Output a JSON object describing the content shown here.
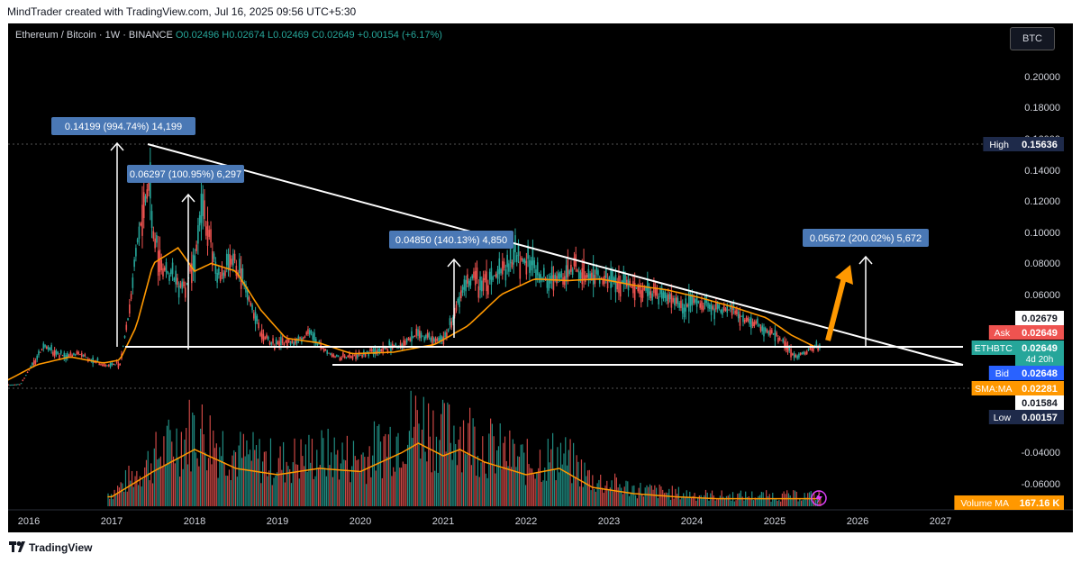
{
  "header": {
    "attribution": "MindTrader created with TradingView.com, Jul 16, 2025 09:56 UTC+5:30"
  },
  "legend": {
    "symbol": "Ethereum / Bitcoin · 1W · BINANCE",
    "ohlc": "O0.02496 H0.02674 L0.02469 C0.02649 +0.00154 (+6.17%)"
  },
  "currency_button": "BTC",
  "footer": {
    "brand": "TradingView"
  },
  "colors": {
    "up": "#26a69a",
    "down": "#ef5350",
    "ma": "#ff9800",
    "trendline": "#ffffff",
    "measure_box": "#4a78b5",
    "arrow_orange": "#ff9800"
  },
  "chart_data": {
    "type": "line",
    "x_labels": [
      "2016",
      "2017",
      "2018",
      "2019",
      "2020",
      "2021",
      "2022",
      "2023",
      "2024",
      "2025",
      "2026",
      "2027"
    ],
    "y_ticks": [
      "0.20000",
      "0.18000",
      "0.16000",
      "0.14000",
      "0.12000",
      "0.10000",
      "0.08000",
      "0.06000",
      "-0.04000",
      "-0.06000"
    ],
    "price_series": {
      "x": [
        2015.6,
        2015.9,
        2016.1,
        2016.2,
        2016.35,
        2016.45,
        2016.6,
        2016.8,
        2016.95,
        2017.1,
        2017.2,
        2017.3,
        2017.45,
        2017.5,
        2017.6,
        2017.75,
        2017.9,
        2018.0,
        2018.1,
        2018.2,
        2018.3,
        2018.45,
        2018.6,
        2018.8,
        2018.95,
        2019.2,
        2019.4,
        2019.55,
        2019.7,
        2019.9,
        2020.1,
        2020.3,
        2020.5,
        2020.7,
        2020.9,
        2021.05,
        2021.2,
        2021.35,
        2021.5,
        2021.7,
        2021.9,
        2022.1,
        2022.25,
        2022.45,
        2022.55,
        2022.7,
        2022.9,
        2023.1,
        2023.3,
        2023.5,
        2023.7,
        2023.9,
        2024.1,
        2024.3,
        2024.5,
        2024.7,
        2024.9,
        2025.1,
        2025.25,
        2025.35,
        2025.5
      ],
      "y": [
        0.0015,
        0.0025,
        0.02,
        0.028,
        0.022,
        0.02,
        0.022,
        0.017,
        0.014,
        0.016,
        0.045,
        0.09,
        0.135,
        0.1,
        0.08,
        0.07,
        0.065,
        0.085,
        0.115,
        0.09,
        0.07,
        0.085,
        0.065,
        0.035,
        0.028,
        0.03,
        0.035,
        0.025,
        0.02,
        0.02,
        0.023,
        0.025,
        0.028,
        0.035,
        0.03,
        0.034,
        0.058,
        0.07,
        0.068,
        0.075,
        0.085,
        0.077,
        0.068,
        0.07,
        0.078,
        0.072,
        0.071,
        0.068,
        0.065,
        0.062,
        0.058,
        0.053,
        0.055,
        0.05,
        0.05,
        0.042,
        0.038,
        0.03,
        0.02,
        0.022,
        0.02649
      ]
    },
    "ma_series": {
      "x": [
        2015.6,
        2016.1,
        2016.5,
        2016.9,
        2017.1,
        2017.3,
        2017.5,
        2017.8,
        2018.0,
        2018.2,
        2018.5,
        2018.8,
        2019.1,
        2019.5,
        2019.9,
        2020.4,
        2020.9,
        2021.3,
        2021.7,
        2022.1,
        2022.5,
        2022.9,
        2023.3,
        2023.7,
        2024.1,
        2024.5,
        2024.9,
        2025.2,
        2025.5
      ],
      "y": [
        0.001,
        0.015,
        0.02,
        0.016,
        0.018,
        0.04,
        0.08,
        0.09,
        0.075,
        0.08,
        0.075,
        0.05,
        0.032,
        0.029,
        0.022,
        0.023,
        0.028,
        0.04,
        0.06,
        0.07,
        0.069,
        0.07,
        0.066,
        0.063,
        0.058,
        0.052,
        0.045,
        0.034,
        0.026
      ]
    },
    "volume_series": {
      "x": [
        2017.0,
        2017.5,
        2018.0,
        2018.5,
        2019.0,
        2019.5,
        2020.0,
        2020.5,
        2020.7,
        2021.0,
        2021.2,
        2021.5,
        2022.0,
        2022.4,
        2022.8,
        2023.3,
        2023.8,
        2024.3,
        2024.8,
        2025.3
      ],
      "values": [
        0.15,
        0.55,
        0.9,
        0.6,
        0.5,
        0.6,
        0.55,
        0.85,
        1.0,
        0.8,
        0.9,
        0.7,
        0.5,
        0.6,
        0.3,
        0.2,
        0.15,
        0.12,
        0.12,
        0.12
      ]
    },
    "price_levels": [
      {
        "label": "High",
        "value": "0.15636",
        "color": "#1e2a4a"
      },
      {
        "label": "",
        "value": "0.02679",
        "color": "#ffffff"
      },
      {
        "label": "Ask",
        "value": "0.02649",
        "color": "#ef5350"
      },
      {
        "label": "ETHBTC",
        "value": "0.02649",
        "sub": "4d 20h",
        "color": "#26a69a"
      },
      {
        "label": "Bid",
        "value": "0.02648",
        "color": "#2962ff"
      },
      {
        "label": "SMA:MA",
        "value": "0.02281",
        "color": "#ff9800"
      },
      {
        "label": "",
        "value": "0.01584",
        "color": "#ffffff"
      },
      {
        "label": "Low",
        "value": "0.00157",
        "color": "#1e2a4a"
      },
      {
        "label": "Volume MA",
        "value": "167.16 K",
        "color": "#ff9800"
      }
    ],
    "annotations": [
      {
        "text": "0.14199 (994.74%) 14,199"
      },
      {
        "text": "0.06297 (100.95%) 6,297"
      },
      {
        "text": "0.04850 (140.13%) 4,850"
      },
      {
        "text": "0.05672 (200.02%) 5,672"
      }
    ]
  }
}
